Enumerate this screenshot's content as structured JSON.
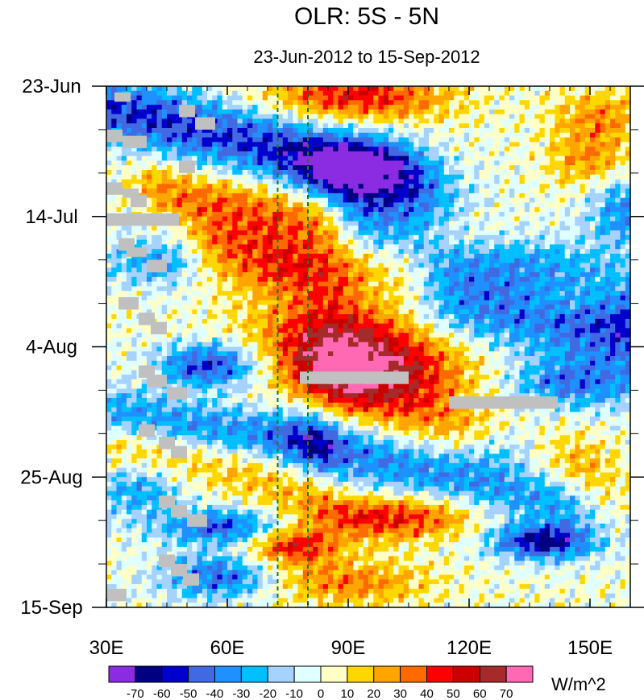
{
  "chart_data": {
    "type": "heatmap",
    "title": "OLR: 5S - 5N",
    "subtitle": "23-Jun-2012 to 15-Sep-2012",
    "x_axis": {
      "range": [
        30,
        160
      ],
      "ticks": [
        30,
        60,
        90,
        120,
        150
      ],
      "tick_labels": [
        "30E",
        "60E",
        "90E",
        "120E",
        "150E"
      ],
      "minor_ticks": [
        35,
        40,
        45,
        50,
        55,
        65,
        70,
        75,
        80,
        85,
        95,
        100,
        105,
        110,
        115,
        125,
        130,
        135,
        140,
        145,
        155,
        160
      ]
    },
    "y_axis": {
      "range_days": [
        0,
        84
      ],
      "direction": "time increases downward",
      "ticks": [
        0,
        21,
        42,
        63,
        84
      ],
      "tick_labels": [
        "23-Jun",
        "14-Jul",
        "4-Aug",
        "25-Aug",
        "15-Sep"
      ],
      "minor_ticks": [
        7,
        14,
        28,
        35,
        49,
        56,
        70,
        77
      ]
    },
    "reference_lines": {
      "style": "dashed",
      "color": "#1a7a1a",
      "longitudes": [
        72.5,
        80
      ]
    },
    "colorbar": {
      "units": "W/m^2",
      "levels": [
        -70,
        -60,
        -50,
        -40,
        -30,
        -20,
        -10,
        0,
        10,
        20,
        30,
        40,
        50,
        60,
        70
      ],
      "level_labels": [
        "-70",
        "-60",
        "-50",
        "-40",
        "-30",
        "-20",
        "-10",
        "0",
        "10",
        "20",
        "30",
        "40",
        "50",
        "60",
        "70"
      ],
      "colors": [
        "#8b2be2",
        "#000080",
        "#0000cd",
        "#4169e1",
        "#1e90ff",
        "#00bfff",
        "#a6d2ff",
        "#e0ffff",
        "#ffffc6",
        "#ffd700",
        "#ffa500",
        "#ff6a00",
        "#ff0000",
        "#cd0000",
        "#a52a2a",
        "#ff69b4"
      ]
    },
    "missing_color": "#c0c0c0",
    "description": "Hovmoller diagram of OLR anomaly averaged 5S-5N; enhanced convection (negative, blue) and suppressed convection (positive, red) propagating eastward over the Indian Ocean and West Pacific."
  }
}
